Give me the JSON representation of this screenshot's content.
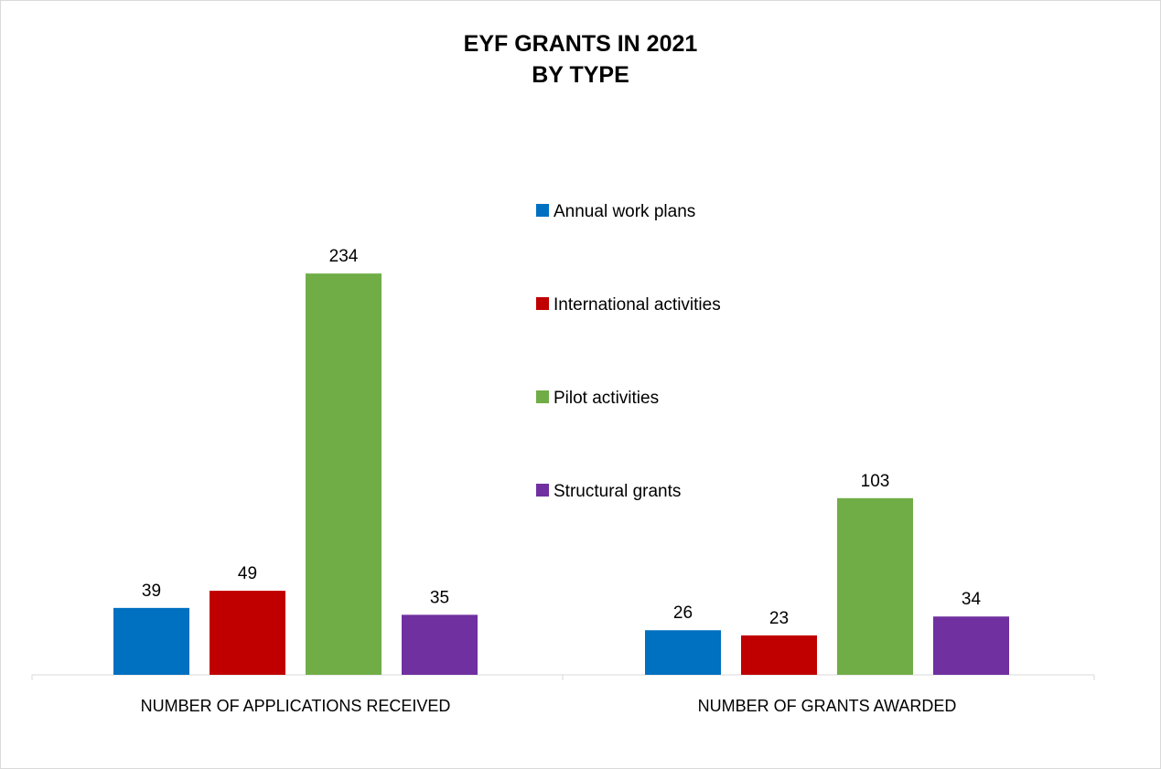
{
  "chart_data": {
    "type": "bar",
    "title": "EYF GRANTS IN 2021",
    "subtitle": "BY TYPE",
    "categories": [
      "NUMBER OF APPLICATIONS RECEIVED",
      "NUMBER OF GRANTS AWARDED"
    ],
    "series": [
      {
        "name": "Annual work plans",
        "color": "#0070c0",
        "values": [
          39,
          26
        ]
      },
      {
        "name": "International activities",
        "color": "#c00000",
        "values": [
          49,
          23
        ]
      },
      {
        "name": "Pilot activities",
        "color": "#70ad47",
        "values": [
          234,
          103
        ]
      },
      {
        "name": "Structural grants",
        "color": "#7030a0",
        "values": [
          35,
          34
        ]
      }
    ],
    "ylim": [
      0,
      260
    ],
    "grid": false,
    "legend": "right",
    "data_labels": true
  }
}
